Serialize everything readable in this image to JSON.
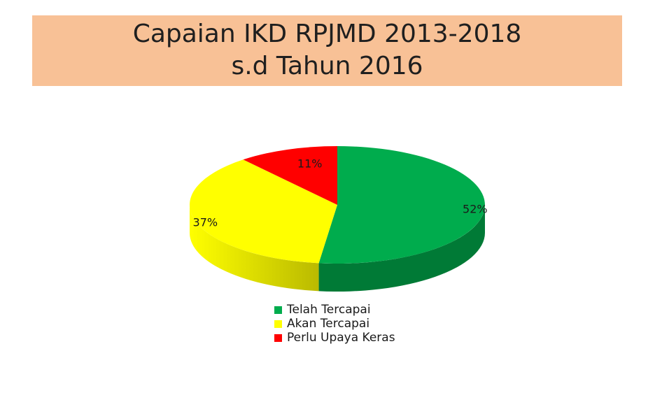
{
  "title": {
    "line1": "Capaian IKD RPJMD 2013-2018",
    "line2": "s.d Tahun 2016"
  },
  "chart_data": {
    "type": "pie",
    "style": "3d",
    "categories": [
      "Telah Tercapai",
      "Akan Tercapai",
      "Perlu Upaya Keras"
    ],
    "values": [
      52,
      37,
      11
    ],
    "data_labels": [
      "52%",
      "37%",
      "11%"
    ],
    "colors": [
      "#00ac4d",
      "#ffff00",
      "#ff0000"
    ],
    "side_colors": [
      "#007a36",
      "#b8b800",
      "#a80000"
    ],
    "legend_position": "bottom"
  }
}
